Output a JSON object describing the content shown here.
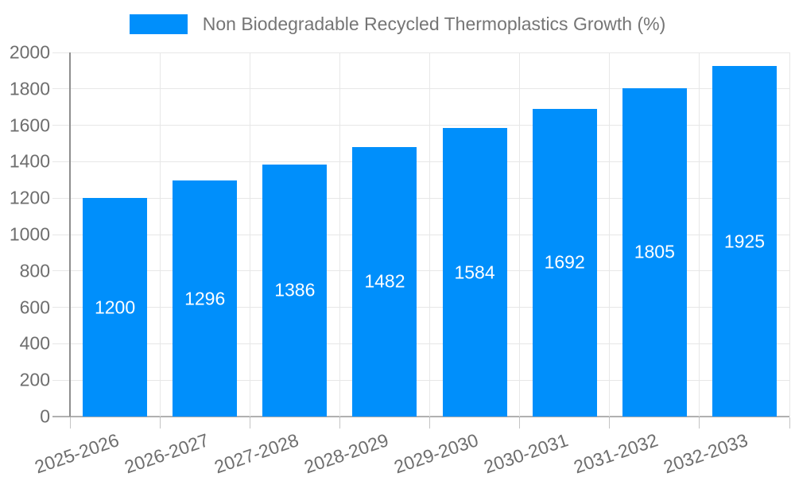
{
  "chart_data": {
    "type": "bar",
    "title": "Non Biodegradable Recycled Thermoplastics Growth (%)",
    "xlabel": "",
    "ylabel": "",
    "categories": [
      "2025-2026",
      "2026-2027",
      "2027-2028",
      "2028-2029",
      "2029-2030",
      "2030-2031",
      "2031-2032",
      "2032-2033"
    ],
    "series": [
      {
        "name": "Non Biodegradable Recycled Thermoplastics Growth (%)",
        "values": [
          1200,
          1296,
          1386,
          1482,
          1584,
          1692,
          1805,
          1925
        ]
      }
    ],
    "data_labels": [
      "1200",
      "1296",
      "1386",
      "1482",
      "1584",
      "1692",
      "1805",
      "1925"
    ],
    "ylim": [
      0,
      2000
    ],
    "yticks": [
      0,
      200,
      400,
      600,
      800,
      1000,
      1200,
      1400,
      1600,
      1800,
      2000
    ],
    "grid": "on",
    "legend_position": "top",
    "x_label_rotation_deg": -19,
    "colors": {
      "bar": "#008FFB",
      "bar_value_label": "#ffffff",
      "axis_text": "#6e6e6e",
      "legend_text": "#757575",
      "gridline": "#e7e7e7",
      "x_axis_line": "#b0b0b0",
      "y_axis_line": "#8f8f8f",
      "tick": "#c4c4c4",
      "background": "#ffffff"
    }
  }
}
